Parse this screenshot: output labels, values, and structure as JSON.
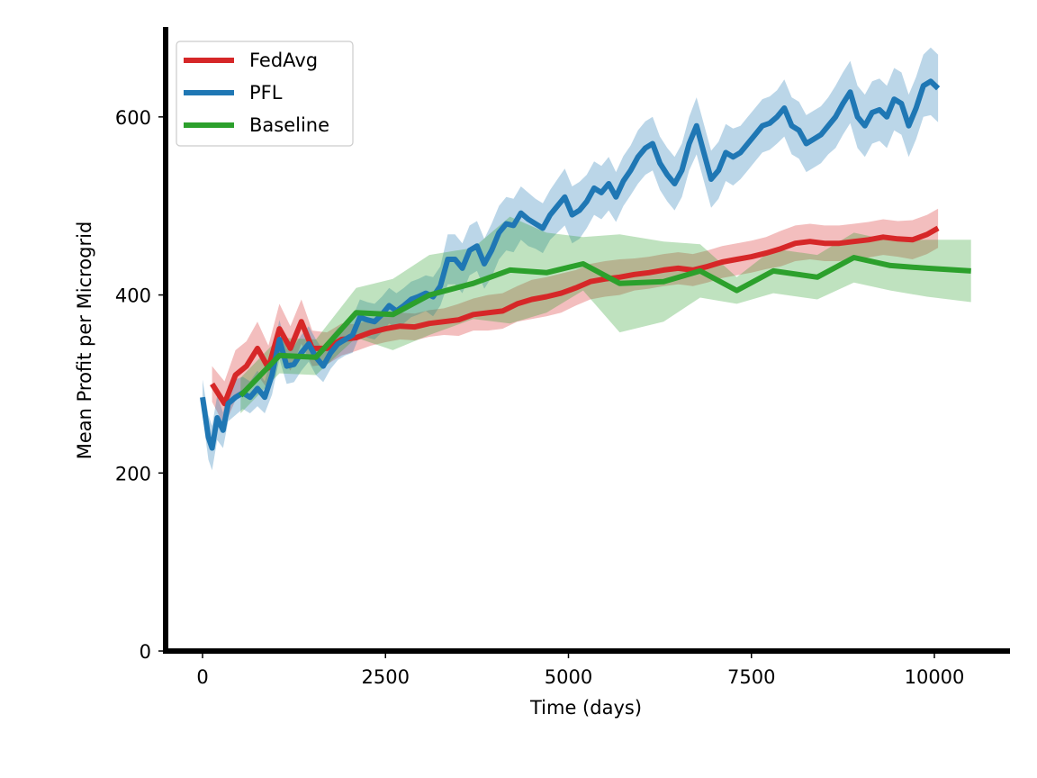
{
  "chart_data": {
    "type": "line",
    "title": "",
    "xlabel": "Time (days)",
    "ylabel": "Mean Profit per Microgrid",
    "xlim": [
      -500,
      11000
    ],
    "ylim": [
      0,
      700
    ],
    "xticks": [
      0,
      2500,
      5000,
      7500,
      10000
    ],
    "yticks": [
      0,
      200,
      400,
      600
    ],
    "grid": false,
    "legend_position": "top-left",
    "series": [
      {
        "name": "FedAvg",
        "color": "#d62728",
        "x": [
          130,
          300,
          450,
          600,
          750,
          900,
          1050,
          1200,
          1350,
          1500,
          1700,
          1900,
          2100,
          2300,
          2500,
          2700,
          2900,
          3100,
          3300,
          3500,
          3700,
          3900,
          4100,
          4300,
          4500,
          4700,
          4900,
          5100,
          5300,
          5500,
          5700,
          5900,
          6100,
          6300,
          6500,
          6700,
          6900,
          7100,
          7300,
          7500,
          7700,
          7900,
          8100,
          8300,
          8500,
          8700,
          8900,
          9100,
          9300,
          9500,
          9700,
          9900,
          10050
        ],
        "values": [
          300,
          278,
          310,
          320,
          340,
          318,
          362,
          340,
          370,
          340,
          340,
          350,
          352,
          358,
          362,
          365,
          364,
          368,
          370,
          372,
          378,
          380,
          382,
          390,
          395,
          398,
          402,
          408,
          415,
          418,
          420,
          423,
          425,
          428,
          430,
          428,
          432,
          437,
          440,
          443,
          447,
          452,
          458,
          460,
          458,
          458,
          460,
          462,
          465,
          463,
          462,
          468,
          475
        ],
        "band": [
          20,
          25,
          28,
          28,
          30,
          25,
          28,
          25,
          25,
          20,
          18,
          18,
          15,
          15,
          15,
          15,
          15,
          15,
          15,
          18,
          18,
          20,
          20,
          20,
          22,
          22,
          22,
          20,
          20,
          20,
          20,
          18,
          18,
          18,
          18,
          18,
          18,
          18,
          18,
          18,
          18,
          20,
          20,
          20,
          20,
          20,
          20,
          20,
          20,
          20,
          22,
          22,
          22
        ]
      },
      {
        "name": "PFL",
        "color": "#1f77b4",
        "x": [
          0,
          80,
          130,
          200,
          280,
          350,
          450,
          550,
          650,
          750,
          850,
          950,
          1050,
          1150,
          1250,
          1350,
          1450,
          1550,
          1650,
          1750,
          1850,
          1950,
          2050,
          2150,
          2250,
          2350,
          2450,
          2550,
          2650,
          2750,
          2850,
          2950,
          3050,
          3150,
          3250,
          3350,
          3450,
          3550,
          3650,
          3750,
          3850,
          3950,
          4050,
          4150,
          4250,
          4350,
          4450,
          4550,
          4650,
          4750,
          4850,
          4950,
          5050,
          5150,
          5250,
          5350,
          5450,
          5550,
          5650,
          5750,
          5850,
          5950,
          6050,
          6150,
          6250,
          6350,
          6450,
          6550,
          6650,
          6750,
          6850,
          6950,
          7050,
          7150,
          7250,
          7350,
          7450,
          7550,
          7650,
          7750,
          7850,
          7950,
          8050,
          8150,
          8250,
          8350,
          8450,
          8550,
          8650,
          8750,
          8850,
          8950,
          9050,
          9150,
          9250,
          9350,
          9450,
          9550,
          9650,
          9750,
          9850,
          9950,
          10050
        ],
        "values": [
          285,
          240,
          228,
          262,
          248,
          278,
          285,
          290,
          285,
          295,
          285,
          310,
          350,
          320,
          322,
          335,
          345,
          330,
          320,
          335,
          345,
          350,
          355,
          375,
          372,
          370,
          378,
          388,
          382,
          388,
          395,
          398,
          402,
          398,
          410,
          440,
          440,
          430,
          450,
          455,
          435,
          450,
          470,
          480,
          478,
          492,
          485,
          480,
          475,
          490,
          500,
          510,
          490,
          495,
          505,
          520,
          515,
          525,
          510,
          528,
          540,
          555,
          565,
          570,
          548,
          535,
          525,
          540,
          570,
          590,
          560,
          530,
          540,
          560,
          555,
          560,
          570,
          580,
          590,
          593,
          600,
          610,
          590,
          585,
          570,
          575,
          580,
          590,
          600,
          615,
          628,
          600,
          590,
          605,
          608,
          600,
          620,
          615,
          590,
          610,
          635,
          640,
          632
        ],
        "band": [
          20,
          25,
          25,
          25,
          20,
          20,
          20,
          18,
          18,
          20,
          18,
          22,
          22,
          20,
          20,
          20,
          20,
          20,
          18,
          18,
          18,
          18,
          20,
          20,
          20,
          20,
          20,
          20,
          20,
          20,
          20,
          20,
          20,
          22,
          22,
          28,
          28,
          28,
          28,
          28,
          28,
          30,
          30,
          30,
          30,
          30,
          30,
          28,
          28,
          28,
          30,
          32,
          32,
          32,
          30,
          30,
          30,
          30,
          28,
          28,
          28,
          30,
          30,
          30,
          30,
          30,
          30,
          30,
          30,
          32,
          32,
          32,
          32,
          32,
          32,
          30,
          30,
          30,
          30,
          30,
          30,
          32,
          32,
          32,
          32,
          32,
          32,
          32,
          35,
          35,
          35,
          35,
          35,
          35,
          35,
          35,
          35,
          35,
          35,
          35,
          35,
          38,
          38
        ]
      },
      {
        "name": "Baseline",
        "color": "#2ca02c",
        "x": [
          520,
          1050,
          1550,
          2100,
          2600,
          3100,
          3700,
          4200,
          4700,
          5200,
          5700,
          6300,
          6800,
          7300,
          7800,
          8400,
          8900,
          9400,
          9900,
          10500
        ],
        "values": [
          287,
          332,
          330,
          380,
          378,
          400,
          413,
          428,
          425,
          435,
          413,
          415,
          427,
          405,
          427,
          420,
          442,
          433,
          430,
          427
        ],
        "band": [
          20,
          20,
          20,
          28,
          40,
          45,
          40,
          60,
          45,
          30,
          55,
          45,
          30,
          15,
          25,
          25,
          28,
          28,
          32,
          35
        ]
      }
    ]
  }
}
